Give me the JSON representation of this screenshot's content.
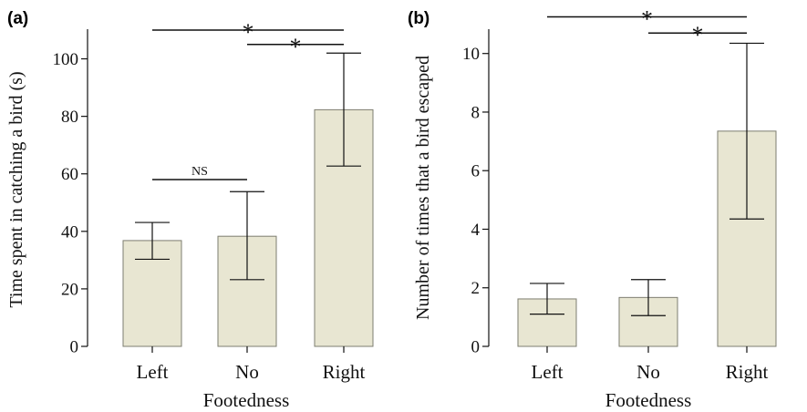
{
  "colors": {
    "bar_fill": "#e8e6d2",
    "bar_stroke": "#7d7d70",
    "ink": "#111111"
  },
  "chart_data": [
    {
      "type": "bar",
      "panel_label": "(a)",
      "categories": [
        "Left",
        "No",
        "Right"
      ],
      "values": [
        36.8,
        38.3,
        82.3
      ],
      "error_low": [
        30.3,
        23.2,
        62.7
      ],
      "error_high": [
        43.1,
        53.8,
        102.0
      ],
      "xlabel": "Footedness",
      "ylabel": "Time spent in catching a bird (s)",
      "ylim": [
        0,
        110
      ],
      "yticks": [
        0,
        20,
        40,
        60,
        80,
        100
      ],
      "ytick_labels": [
        "0",
        "20",
        "40",
        "60",
        "80",
        "100"
      ],
      "significance": [
        {
          "from": 0,
          "to": 2,
          "label": "*",
          "y": 110
        },
        {
          "from": 1,
          "to": 2,
          "label": "*",
          "y": 105
        },
        {
          "from": 0,
          "to": 1,
          "label": "NS",
          "y": 58
        }
      ],
      "grid": false
    },
    {
      "type": "bar",
      "panel_label": "(b)",
      "categories": [
        "Left",
        "No",
        "Right"
      ],
      "values": [
        1.62,
        1.67,
        7.35
      ],
      "error_low": [
        1.1,
        1.05,
        4.35
      ],
      "error_high": [
        2.15,
        2.28,
        10.35
      ],
      "xlabel": "Footedness",
      "ylabel": "Number of times that a bird escaped",
      "ylim": [
        0,
        10.8
      ],
      "yticks": [
        0,
        2,
        4,
        6,
        8,
        10
      ],
      "ytick_labels": [
        "0",
        "2",
        "4",
        "6",
        "8",
        "10"
      ],
      "significance": [
        {
          "from": 0,
          "to": 2,
          "label": "*",
          "y": 11.25
        },
        {
          "from": 1,
          "to": 2,
          "label": "*",
          "y": 10.7
        }
      ],
      "grid": false
    }
  ]
}
